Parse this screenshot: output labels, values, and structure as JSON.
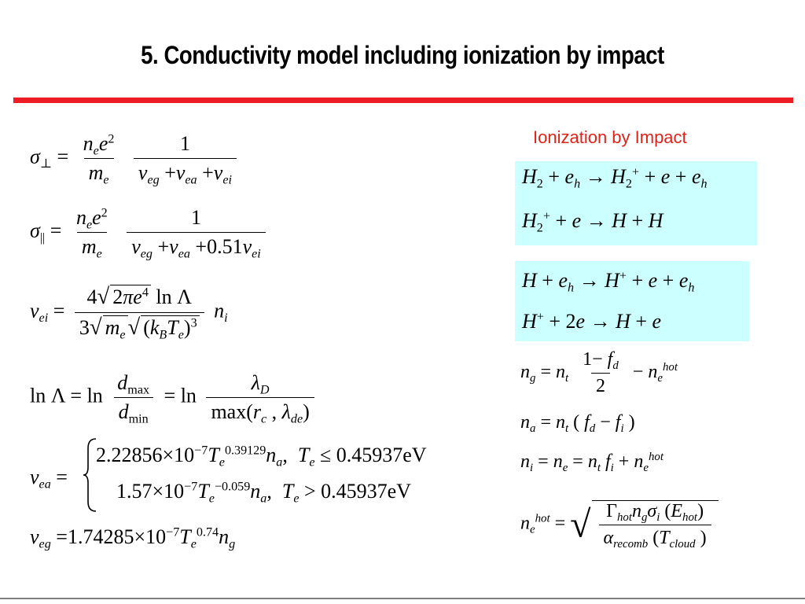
{
  "slide": {
    "title": "5. Conductivity model including ionization by impact",
    "subtitle": "Ionization by Impact"
  },
  "accent_color": "#ee1c25",
  "box_color": "#ccffff",
  "formulas": {
    "sigma_perp_rhs_num": "1",
    "sigma_par_rhs_num": "1",
    "sigma_par_coef": "0.51",
    "nu_ei_coef_num": "4",
    "nu_ei_coef_den": "3",
    "nu_ea_coef1": "2.22856×10",
    "nu_ea_exp1": "−7",
    "nu_ea_texp1": "0.39129",
    "nu_ea_cond1": "≤ 0.45937eV",
    "nu_ea_coef2": "1.57×10",
    "nu_ea_exp2": "−7",
    "nu_ea_texp2": "−0.059",
    "nu_ea_cond2": "> 0.45937eV",
    "nu_eg_coef": "1.74285×10",
    "nu_eg_exp": "−7",
    "nu_eg_texp": "0.74",
    "ng_num": "1− f",
    "ng_den": "2"
  }
}
